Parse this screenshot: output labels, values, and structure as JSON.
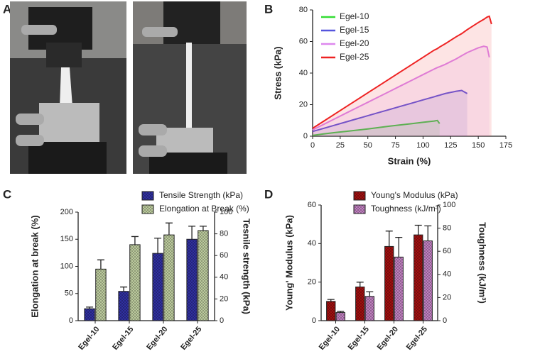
{
  "photo_panel_label": "A",
  "chart_data": [
    {
      "type": "line",
      "panel_label": "B",
      "xlabel": "Strain (%)",
      "ylabel": "Stress (kPa)",
      "x": [
        0,
        10,
        20,
        30,
        40,
        50,
        60,
        70,
        80,
        90,
        100,
        110,
        113,
        115,
        120,
        130,
        135,
        140,
        150,
        155,
        158,
        160,
        162
      ],
      "xlim": [
        0,
        175
      ],
      "xticks": [
        0,
        25,
        50,
        75,
        100,
        125,
        150,
        175
      ],
      "ylim": [
        0,
        80
      ],
      "yticks": [
        0,
        20,
        40,
        60,
        80
      ],
      "legend": "upper-left",
      "fill_under": true,
      "series": [
        {
          "name": "Egel-10",
          "color": "#33dd33",
          "values": [
            0.5,
            1.5,
            2.3,
            3,
            3.8,
            4.6,
            5.5,
            6.4,
            7.2,
            8,
            8.8,
            9.6,
            10,
            8,
            null,
            null,
            null,
            null,
            null,
            null,
            null,
            null,
            null
          ]
        },
        {
          "name": "Egel-15",
          "color": "#5555dd",
          "values": [
            3,
            5,
            7,
            9,
            11,
            13,
            15,
            17,
            19,
            21,
            23,
            25,
            25.6,
            26,
            27,
            28.5,
            29,
            27,
            null,
            null,
            null,
            null,
            null
          ]
        },
        {
          "name": "Egel-20",
          "color": "#dd88ee",
          "values": [
            4,
            7.5,
            11,
            14.5,
            18,
            21.5,
            25,
            28.5,
            32,
            35.5,
            39,
            42.5,
            43.5,
            44,
            45.5,
            49,
            51,
            53,
            56,
            57,
            56.5,
            50,
            null
          ]
        },
        {
          "name": "Egel-25",
          "color": "#ee2222",
          "values": [
            5,
            9.5,
            14,
            18.5,
            23,
            27.5,
            32,
            36.5,
            41,
            45.5,
            50,
            54.5,
            55.5,
            56.5,
            58.5,
            63,
            65,
            67.5,
            72,
            74,
            75.5,
            76,
            71
          ]
        }
      ]
    },
    {
      "type": "bar",
      "panel_label": "C",
      "ylabel": "Elongation at break (%)",
      "y2label": "Tesnile strength (kPa)",
      "categories": [
        "Egel-10",
        "Egel-15",
        "Egel-20",
        "Egel-25"
      ],
      "ylim": [
        0,
        200
      ],
      "yticks": [
        0,
        50,
        100,
        150,
        200
      ],
      "y2lim": [
        0,
        100
      ],
      "y2ticks": [
        0,
        20,
        40,
        60,
        80,
        100
      ],
      "series": [
        {
          "name": "Tensile Strength (kPa)",
          "color": "#3333aa",
          "axis": "y2",
          "values": [
            11,
            27,
            62,
            75
          ],
          "errors": [
            1.5,
            4,
            14,
            12
          ]
        },
        {
          "name": "Elongation at Break (%)",
          "color": "#c8d8a8",
          "values": [
            95,
            140,
            158,
            166
          ],
          "errors": [
            17,
            15,
            22,
            8
          ]
        }
      ]
    },
    {
      "type": "bar",
      "panel_label": "D",
      "ylabel": "Young' Modulus (kPa)",
      "y2label": "Toughness (kJ/m³)",
      "categories": [
        "Egel-10",
        "Egel-15",
        "Egel-20",
        "Egel-25"
      ],
      "ylim": [
        0,
        60
      ],
      "yticks": [
        0,
        20,
        40,
        60
      ],
      "y2lim": [
        0,
        100
      ],
      "y2ticks": [
        0,
        20,
        40,
        60,
        80,
        100
      ],
      "series": [
        {
          "name": "Young's Modulus (kPa)",
          "color": "#aa1111",
          "values": [
            10,
            17.5,
            38.5,
            44.5
          ],
          "errors": [
            1,
            2.5,
            8,
            5
          ]
        },
        {
          "name": "Toughness (kJ/m³)",
          "color": "#cc88cc",
          "axis": "y2",
          "values": [
            7,
            21,
            55,
            69
          ],
          "errors": [
            1,
            4,
            17,
            13
          ]
        }
      ]
    }
  ]
}
